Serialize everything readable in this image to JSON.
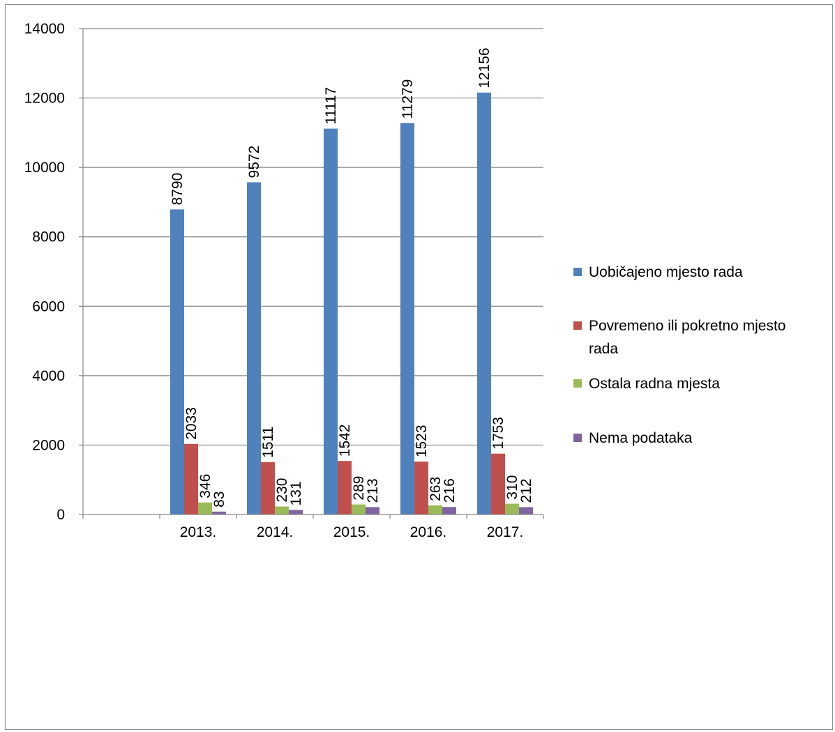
{
  "chart_data": {
    "type": "bar",
    "categories": [
      "",
      "2013.",
      "2014.",
      "2015.",
      "2016.",
      "2017."
    ],
    "series": [
      {
        "name": "Uobičajeno mjesto rada",
        "color": "#4f81bd",
        "values": [
          null,
          8790,
          9572,
          11117,
          11279,
          12156
        ]
      },
      {
        "name": "Povremeno ili pokretno mjesto rada",
        "color": "#c0504d",
        "values": [
          null,
          2033,
          1511,
          1542,
          1523,
          1753
        ]
      },
      {
        "name": "Ostala radna mjesta",
        "color": "#9bbb59",
        "values": [
          null,
          346,
          230,
          289,
          263,
          310
        ]
      },
      {
        "name": "Nema podataka",
        "color": "#8064a2",
        "values": [
          null,
          83,
          131,
          213,
          216,
          212
        ]
      }
    ],
    "ylim": [
      0,
      14000
    ],
    "yticks": [
      0,
      2000,
      4000,
      6000,
      8000,
      10000,
      12000,
      14000
    ],
    "grid": true,
    "legend_position": "right",
    "data_labels": true
  },
  "legend_lines": [
    [
      "Uobičajeno mjesto rada"
    ],
    [
      "Povremeno ili pokretno mjesto",
      "rada"
    ],
    [
      "Ostala radna mjesta"
    ],
    [
      "Nema podataka"
    ]
  ]
}
